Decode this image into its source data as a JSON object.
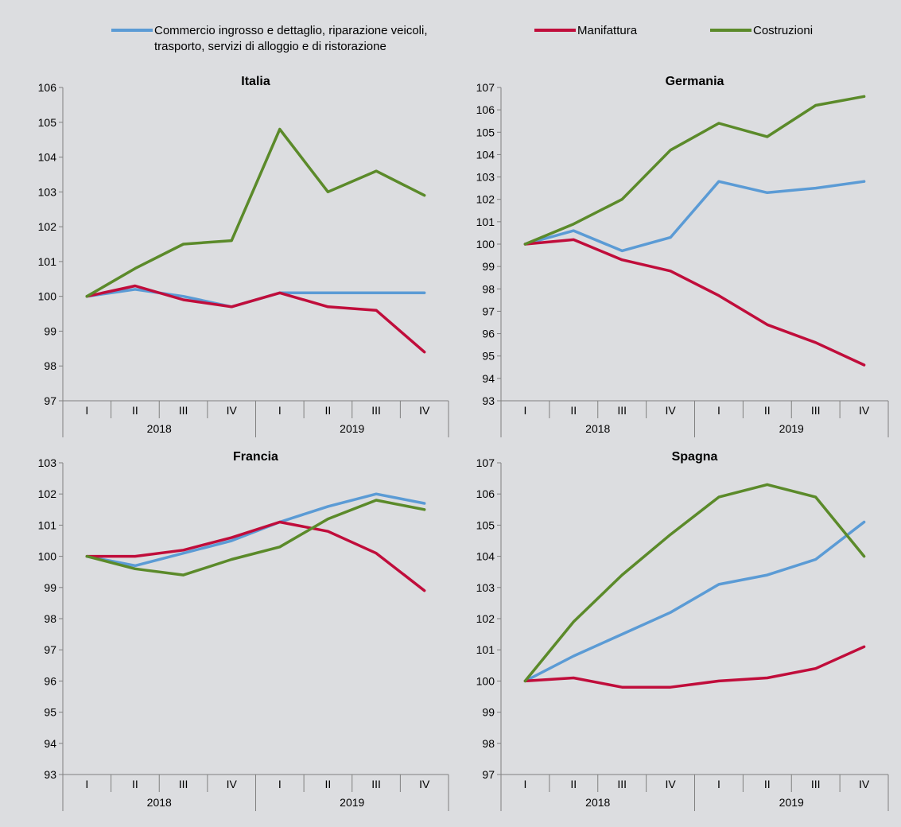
{
  "legend": {
    "entries": [
      {
        "lines": [
          "Commercio ingrosso e dettaglio, riparazione veicoli,",
          "trasporto, servizi di alloggio e di ristorazione"
        ],
        "color": "#5b9bd5"
      },
      {
        "lines": [
          "Manifattura"
        ],
        "color": "#c00d3b"
      },
      {
        "lines": [
          "Costruzioni"
        ],
        "color": "#5b8a2a"
      }
    ]
  },
  "chart_data": [
    {
      "type": "line",
      "title": "Italia",
      "categories": [
        "I",
        "II",
        "III",
        "IV",
        "I",
        "II",
        "III",
        "IV"
      ],
      "year_groups": [
        {
          "label": "2018",
          "span": 4
        },
        {
          "label": "2019",
          "span": 4
        }
      ],
      "ylim": [
        97,
        106
      ],
      "yticks": [
        97,
        98,
        99,
        100,
        101,
        102,
        103,
        104,
        105,
        106
      ],
      "series": [
        {
          "name": "Commercio ingrosso e dettaglio, riparazione veicoli, trasporto, servizi di alloggio e di ristorazione",
          "color": "#5b9bd5",
          "values": [
            100,
            100.2,
            100.0,
            99.7,
            100.1,
            100.1,
            100.1,
            100.1
          ]
        },
        {
          "name": "Manifattura",
          "color": "#c00d3b",
          "values": [
            100,
            100.3,
            99.9,
            99.7,
            100.1,
            99.7,
            99.6,
            98.4
          ]
        },
        {
          "name": "Costruzioni",
          "color": "#5b8a2a",
          "values": [
            100,
            100.8,
            101.5,
            101.6,
            104.8,
            103.0,
            103.6,
            102.9
          ]
        }
      ]
    },
    {
      "type": "line",
      "title": "Germania",
      "categories": [
        "I",
        "II",
        "III",
        "IV",
        "I",
        "II",
        "III",
        "IV"
      ],
      "year_groups": [
        {
          "label": "2018",
          "span": 4
        },
        {
          "label": "2019",
          "span": 4
        }
      ],
      "ylim": [
        93,
        107
      ],
      "yticks": [
        93,
        94,
        95,
        96,
        97,
        98,
        99,
        100,
        101,
        102,
        103,
        104,
        105,
        106,
        107
      ],
      "series": [
        {
          "name": "Commercio ingrosso e dettaglio, riparazione veicoli, trasporto, servizi di alloggio e di ristorazione",
          "color": "#5b9bd5",
          "values": [
            100,
            100.6,
            99.7,
            100.3,
            102.8,
            102.3,
            102.5,
            102.8
          ]
        },
        {
          "name": "Manifattura",
          "color": "#c00d3b",
          "values": [
            100,
            100.2,
            99.3,
            98.8,
            97.7,
            96.4,
            95.6,
            94.6
          ]
        },
        {
          "name": "Costruzioni",
          "color": "#5b8a2a",
          "values": [
            100,
            100.9,
            102.0,
            104.2,
            105.4,
            104.8,
            106.2,
            106.6
          ]
        }
      ]
    },
    {
      "type": "line",
      "title": "Francia",
      "categories": [
        "I",
        "II",
        "III",
        "IV",
        "I",
        "II",
        "III",
        "IV"
      ],
      "year_groups": [
        {
          "label": "2018",
          "span": 4
        },
        {
          "label": "2019",
          "span": 4
        }
      ],
      "ylim": [
        93,
        103
      ],
      "yticks": [
        93,
        94,
        95,
        96,
        97,
        98,
        99,
        100,
        101,
        102,
        103
      ],
      "series": [
        {
          "name": "Commercio ingrosso e dettaglio, riparazione veicoli, trasporto, servizi di alloggio e di ristorazione",
          "color": "#5b9bd5",
          "values": [
            100,
            99.7,
            100.1,
            100.5,
            101.1,
            101.6,
            102.0,
            101.7
          ]
        },
        {
          "name": "Manifattura",
          "color": "#c00d3b",
          "values": [
            100,
            100,
            100.2,
            100.6,
            101.1,
            100.8,
            100.1,
            98.9
          ]
        },
        {
          "name": "Costruzioni",
          "color": "#5b8a2a",
          "values": [
            100,
            99.6,
            99.4,
            99.9,
            100.3,
            101.2,
            101.8,
            101.5
          ]
        }
      ]
    },
    {
      "type": "line",
      "title": "Spagna",
      "categories": [
        "I",
        "II",
        "III",
        "IV",
        "I",
        "II",
        "III",
        "IV"
      ],
      "year_groups": [
        {
          "label": "2018",
          "span": 4
        },
        {
          "label": "2019",
          "span": 4
        }
      ],
      "ylim": [
        97,
        107
      ],
      "yticks": [
        97,
        98,
        99,
        100,
        101,
        102,
        103,
        104,
        105,
        106,
        107
      ],
      "series": [
        {
          "name": "Commercio ingrosso e dettaglio, riparazione veicoli, trasporto, servizi di alloggio e di ristorazione",
          "color": "#5b9bd5",
          "values": [
            100,
            100.8,
            101.5,
            102.2,
            103.1,
            103.4,
            103.9,
            105.1
          ]
        },
        {
          "name": "Manifattura",
          "color": "#c00d3b",
          "values": [
            100,
            100.1,
            99.8,
            99.8,
            100.0,
            100.1,
            100.4,
            101.1
          ]
        },
        {
          "name": "Costruzioni",
          "color": "#5b8a2a",
          "values": [
            100,
            101.9,
            103.4,
            104.7,
            105.9,
            106.3,
            105.9,
            104.0
          ]
        }
      ]
    }
  ]
}
